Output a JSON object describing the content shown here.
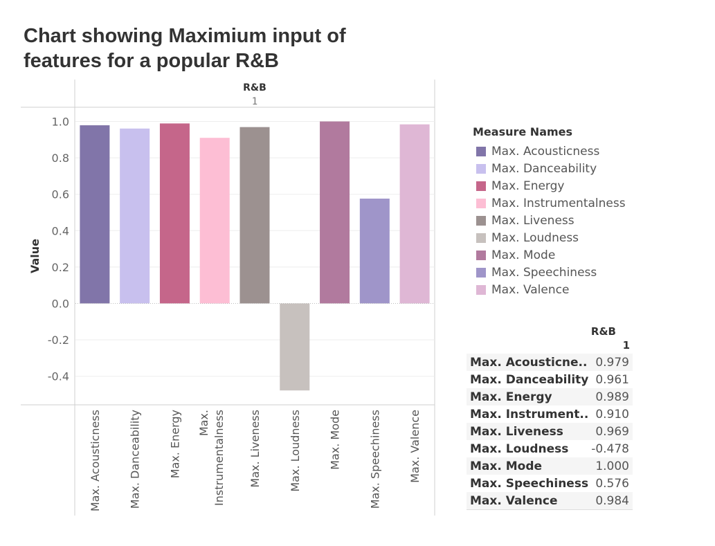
{
  "title": "Chart showing Maximium input of features for a popular R&B",
  "chart_data": {
    "type": "bar",
    "column_header": {
      "genre": "R&B",
      "sub": "1"
    },
    "categories": [
      "Max. Acousticness",
      "Max. Danceability",
      "Max. Energy",
      "Max. Instrumentalness",
      "Max. Liveness",
      "Max. Loudness",
      "Max. Mode",
      "Max. Speechiness",
      "Max. Valence"
    ],
    "values": [
      0.979,
      0.961,
      0.989,
      0.91,
      0.969,
      -0.478,
      1.0,
      0.576,
      0.984
    ],
    "colors": [
      "#8175a9",
      "#c8c0ee",
      "#c5668a",
      "#fdbed4",
      "#9c9190",
      "#c7c1be",
      "#b17a9e",
      "#9f95c9",
      "#dfb7d5"
    ],
    "ylabel": "Value",
    "yticks": [
      "1.0",
      "0.8",
      "0.6",
      "0.4",
      "0.2",
      "0.0",
      "-0.2",
      "-0.4"
    ],
    "ylim": [
      -0.55,
      1.0
    ],
    "grid": true
  },
  "legend": {
    "title": "Measure Names",
    "items": [
      "Max. Acousticness",
      "Max. Danceability",
      "Max. Energy",
      "Max. Instrumentalness",
      "Max. Liveness",
      "Max. Loudness",
      "Max. Mode",
      "Max. Speechiness",
      "Max. Valence"
    ]
  },
  "table": {
    "header_genre": "R&B",
    "header_num": "1",
    "rows": [
      {
        "label": "Max. Acousticne..",
        "value": "0.979"
      },
      {
        "label": "Max. Danceability",
        "value": "0.961"
      },
      {
        "label": "Max. Energy",
        "value": "0.989"
      },
      {
        "label": "Max. Instrument..",
        "value": "0.910"
      },
      {
        "label": "Max. Liveness",
        "value": "0.969"
      },
      {
        "label": "Max. Loudness",
        "value": "-0.478"
      },
      {
        "label": "Max. Mode",
        "value": "1.000"
      },
      {
        "label": "Max. Speechiness",
        "value": "0.576"
      },
      {
        "label": "Max. Valence",
        "value": "0.984"
      }
    ]
  }
}
